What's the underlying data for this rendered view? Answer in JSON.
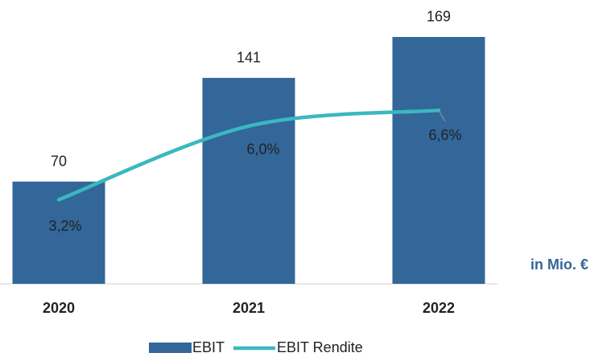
{
  "chart_data": {
    "type": "bar",
    "categories": [
      "2020",
      "2021",
      "2022"
    ],
    "series": [
      {
        "name": "EBIT",
        "type": "bar",
        "color": "#336699",
        "values": [
          70,
          141,
          169
        ]
      },
      {
        "name": "EBIT Rendite",
        "type": "line",
        "axis": "y2",
        "color": "#3ab8c0",
        "values": [
          3.2,
          6.0,
          6.6
        ],
        "value_labels": [
          "3,2%",
          "6,0%",
          "6,6%"
        ]
      }
    ],
    "ylim": [
      0,
      180
    ],
    "y2lim": [
      0,
      10
    ],
    "annotations": [
      "in Mio. €"
    ],
    "legend": "bottom"
  }
}
